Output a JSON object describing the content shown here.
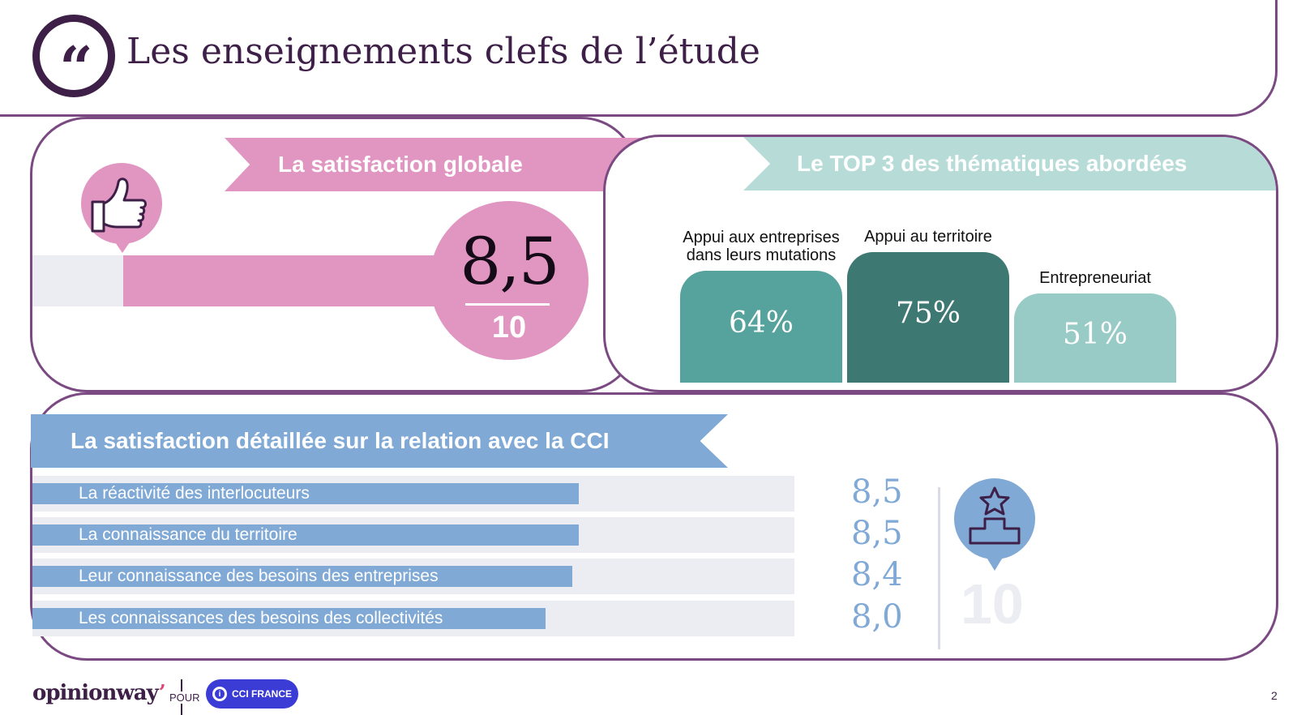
{
  "header": {
    "title": "Les enseignements clefs de l’étude",
    "quote_glyph": "99"
  },
  "global": {
    "banner": "La satisfaction globale",
    "score": "8,5",
    "max": "10",
    "score_fraction": 0.85,
    "icon": "thumbs-up-icon"
  },
  "top3": {
    "banner": "Le TOP 3 des thématiques abordées",
    "themes": [
      {
        "label": "Appui aux entreprises dans leurs mutations",
        "value_text": "64%",
        "value": 64,
        "color": "#55a39c"
      },
      {
        "label": "Appui au territoire",
        "value_text": "75%",
        "value": 75,
        "color": "#3d7873"
      },
      {
        "label": "Entrepreneuriat",
        "value_text": "51%",
        "value": 51,
        "color": "#99cbc6"
      }
    ]
  },
  "detail": {
    "banner": "La satisfaction détaillée sur la relation avec la CCI",
    "rows": [
      {
        "label": "La réactivité des interlocuteurs",
        "score": "8,5"
      },
      {
        "label": "La connaissance du territoire",
        "score": "8,5"
      },
      {
        "label": "Leur connaissance des besoins des entreprises",
        "score": "8,4"
      },
      {
        "label": "Les connaissances des besoins des collectivités",
        "score": "8,0"
      }
    ],
    "max": "10",
    "icon": "podium-star-icon"
  },
  "footer": {
    "brand": "opinionway",
    "pour": "POUR",
    "client": "CCI FRANCE",
    "page": "2"
  },
  "colors": {
    "purple": "#3d1f47",
    "pink": "#e096c1",
    "teal": "#b7dcd8",
    "blue": "#80a9d6"
  }
}
